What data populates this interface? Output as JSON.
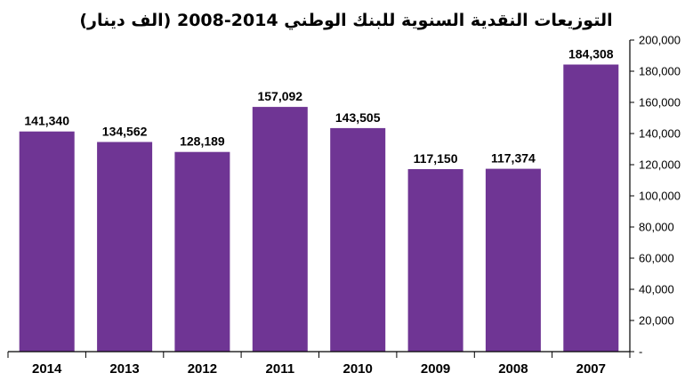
{
  "chart_data": {
    "type": "bar",
    "title": "التوزيعات النقدية السنوية للبنك الوطني 2014-2008  (الف دينار)",
    "categories": [
      "2014",
      "2013",
      "2012",
      "2011",
      "2010",
      "2009",
      "2008",
      "2007"
    ],
    "values": [
      141340,
      134562,
      128189,
      157092,
      143505,
      117150,
      117374,
      184308
    ],
    "value_labels": [
      "141,340",
      "134,562",
      "128,189",
      "157,092",
      "143,505",
      "117,150",
      "117,374",
      "184,308"
    ],
    "ylim": [
      0,
      200000
    ],
    "y_ticks": [
      {
        "value": 0,
        "label": "-"
      },
      {
        "value": 20000,
        "label": "20,000"
      },
      {
        "value": 40000,
        "label": "40,000"
      },
      {
        "value": 60000,
        "label": "60,000"
      },
      {
        "value": 80000,
        "label": "80,000"
      },
      {
        "value": 100000,
        "label": "100,000"
      },
      {
        "value": 120000,
        "label": "120,000"
      },
      {
        "value": 140000,
        "label": "140,000"
      },
      {
        "value": 160000,
        "label": "160,000"
      },
      {
        "value": 180000,
        "label": "180,000"
      },
      {
        "value": 200000,
        "label": "200,000"
      }
    ],
    "y_axis_side": "right",
    "grid": false,
    "bar_color": "#6f3594"
  }
}
